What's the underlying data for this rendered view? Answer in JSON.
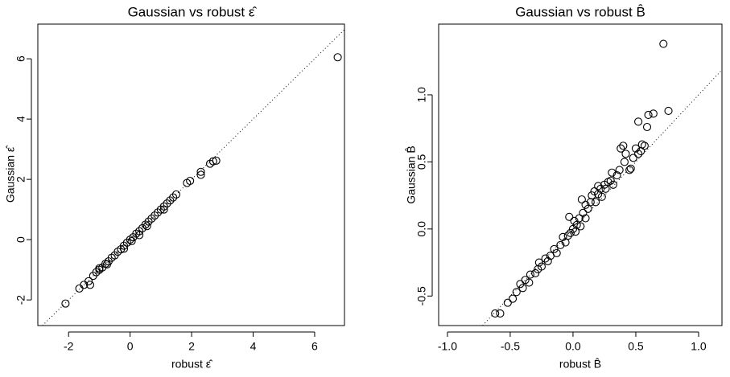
{
  "chart_data": [
    {
      "type": "scatter",
      "title": "Gaussian vs robust ε̂",
      "x_label": "robust ε̂",
      "y_label": "Gaussian ε̂",
      "diagonal": true,
      "color": "#000000",
      "xlim": [
        -3.0,
        6.97
      ],
      "ylim": [
        -2.85,
        7.15
      ],
      "xticks": [
        -2,
        0,
        2,
        4,
        6
      ],
      "yticks": [
        -2,
        0,
        2,
        4,
        6
      ],
      "x": [
        -2.1,
        -1.65,
        -1.5,
        -1.3,
        -1.35,
        -1.2,
        -1.1,
        -1.0,
        -0.9,
        -0.8,
        -0.7,
        -0.6,
        -0.5,
        -0.4,
        -0.3,
        -0.2,
        -0.1,
        0,
        0.1,
        0.2,
        0.3,
        0.4,
        0.5,
        0.6,
        0.7,
        0.8,
        0.9,
        1.0,
        1.1,
        1.2,
        1.3,
        1.4,
        1.5,
        1.85,
        1.95,
        2.3,
        2.3,
        2.6,
        2.7,
        2.8,
        6.75,
        -0.75,
        0.3,
        -0.2,
        0.55,
        -1.0,
        1.1,
        0.05
      ],
      "values": [
        -2.12,
        -1.62,
        -1.5,
        -1.5,
        -1.38,
        -1.2,
        -1.08,
        -1.0,
        -0.92,
        -0.8,
        -0.72,
        -0.6,
        -0.52,
        -0.4,
        -0.32,
        -0.2,
        -0.1,
        0,
        0.08,
        0.2,
        0.28,
        0.38,
        0.5,
        0.6,
        0.7,
        0.8,
        0.9,
        1.0,
        1.1,
        1.2,
        1.3,
        1.4,
        1.5,
        1.88,
        1.95,
        2.25,
        2.15,
        2.52,
        2.6,
        2.62,
        6.05,
        -0.82,
        0.15,
        -0.3,
        0.45,
        -0.95,
        1.0,
        -0.05
      ]
    },
    {
      "type": "scatter",
      "title": "Gaussian vs robust B̂",
      "x_label": "robust B̂",
      "y_label": "Gaussian B̂",
      "diagonal": true,
      "color": "#000000",
      "xlim": [
        -1.07,
        1.186
      ],
      "ylim": [
        -0.72,
        1.527
      ],
      "xticks": [
        {
          "value": -1,
          "label": "-1.0"
        },
        -0.5,
        {
          "value": 0,
          "label": "0.0"
        },
        0.5,
        {
          "value": 1,
          "label": "1.0"
        }
      ],
      "yticks": [
        -0.5,
        {
          "value": 0,
          "label": "0.0"
        },
        0.5,
        {
          "value": 1,
          "label": "1.0"
        }
      ],
      "x": [
        -0.62,
        -0.58,
        -0.52,
        -0.48,
        -0.45,
        -0.42,
        -0.4,
        -0.38,
        -0.35,
        -0.34,
        -0.3,
        -0.28,
        -0.27,
        -0.25,
        -0.22,
        -0.2,
        -0.18,
        -0.15,
        -0.13,
        -0.1,
        -0.08,
        -0.06,
        -0.04,
        -0.02,
        0,
        0.01,
        0.02,
        0.03,
        0.05,
        0.06,
        0.08,
        0.1,
        0.1,
        0.12,
        0.14,
        0.15,
        0.17,
        0.18,
        0.2,
        0.22,
        0.23,
        0.25,
        0.26,
        0.28,
        0.3,
        0.31,
        0.32,
        0.35,
        0.37,
        0.38,
        0.4,
        0.41,
        0.42,
        0.45,
        0.46,
        0.48,
        0.5,
        0.52,
        0.52,
        0.54,
        0.55,
        0.57,
        0.59,
        0.6,
        0.64,
        0.72,
        0.76,
        -0.03,
        0.07,
        0.2
      ],
      "values": [
        -0.63,
        -0.63,
        -0.55,
        -0.52,
        -0.47,
        -0.41,
        -0.44,
        -0.38,
        -0.4,
        -0.34,
        -0.33,
        -0.3,
        -0.25,
        -0.28,
        -0.22,
        -0.24,
        -0.2,
        -0.15,
        -0.18,
        -0.12,
        -0.06,
        -0.1,
        -0.05,
        -0.03,
        0,
        0.06,
        -0.02,
        0.03,
        0.08,
        0.02,
        0.12,
        0.08,
        0.18,
        0.15,
        0.2,
        0.25,
        0.28,
        0.2,
        0.26,
        0.3,
        0.24,
        0.33,
        0.3,
        0.35,
        0.36,
        0.42,
        0.33,
        0.4,
        0.44,
        0.6,
        0.62,
        0.5,
        0.56,
        0.44,
        0.45,
        0.53,
        0.6,
        0.56,
        0.8,
        0.58,
        0.63,
        0.62,
        0.76,
        0.85,
        0.86,
        1.38,
        0.88,
        0.09,
        0.22,
        0.32
      ]
    }
  ]
}
